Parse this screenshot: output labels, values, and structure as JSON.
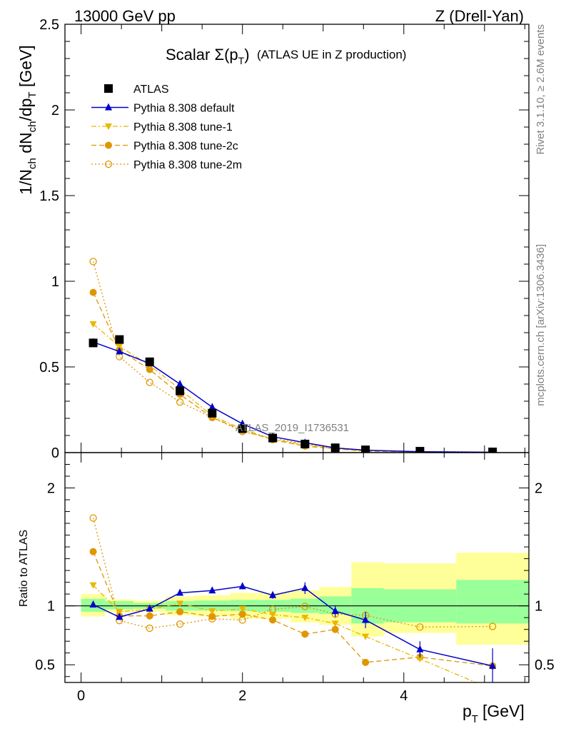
{
  "header": {
    "left": "13000 GeV pp",
    "right": "Z (Drell-Yan)"
  },
  "title": {
    "main": "Scalar Σ(p",
    "sub": "T",
    "close": ")",
    "tail": "(ATLAS UE in Z production)"
  },
  "side_labels": {
    "rivet": "Rivet 3.1.10, ≥ 2.6M events",
    "mcplots": "mcplots.cern.ch [arXiv:1306.3436]"
  },
  "watermark": "ATLAS_2019_I1736531",
  "axes": {
    "ylabel_main": "1/N_ch dN_ch/dp_T [GeV]",
    "ylabel_ratio": "Ratio to ATLAS",
    "xlabel": "p_T [GeV]",
    "xlabel_main": "p",
    "xlabel_sub": "T",
    "xlabel_unit": "[GeV]"
  },
  "colors": {
    "atlas": "#000000",
    "default": "#0000cc",
    "tune1": "#e8b800",
    "tune2c": "#e09600",
    "tune2m": "#e09600",
    "band_inner": "#99ff99",
    "band_outer": "#ffff99"
  },
  "chart_data": [
    {
      "type": "scatter",
      "panel": "main",
      "xlim": [
        -0.2,
        5.55
      ],
      "ylim": [
        0,
        2.5
      ],
      "xticks": [
        0,
        2,
        4
      ],
      "yticks": [
        0,
        0.5,
        1,
        1.5,
        2,
        2.5
      ],
      "ytick_labels": [
        "0",
        "0.5",
        "1",
        "1.5",
        "2",
        "2.5"
      ],
      "x": [
        0.15,
        0.475,
        0.85,
        1.225,
        1.625,
        2.0,
        2.375,
        2.775,
        3.15,
        3.525,
        4.2,
        5.1
      ],
      "series": [
        {
          "name": "ATLAS",
          "key": "atlas",
          "marker": "square",
          "line": "none",
          "values": [
            0.64,
            0.66,
            0.53,
            0.36,
            0.23,
            0.14,
            0.085,
            0.05,
            0.028,
            0.016,
            0.008,
            0.004
          ]
        },
        {
          "name": "Pythia 8.308 default",
          "key": "default",
          "marker": "triangle-up",
          "line": "solid",
          "values": [
            0.645,
            0.59,
            0.52,
            0.4,
            0.265,
            0.168,
            0.093,
            0.058,
            0.027,
            0.014,
            0.005,
            0.002
          ]
        },
        {
          "name": "Pythia 8.308 tune-1",
          "key": "tune1",
          "marker": "triangle-down",
          "line": "dashdot",
          "values": [
            0.75,
            0.62,
            0.51,
            0.37,
            0.215,
            0.137,
            0.078,
            0.045,
            0.022,
            0.012,
            0.004,
            0.0012
          ]
        },
        {
          "name": "Pythia 8.308 tune-2c",
          "key": "tune2c",
          "marker": "circle",
          "line": "dashed",
          "values": [
            0.935,
            0.6,
            0.485,
            0.34,
            0.205,
            0.13,
            0.075,
            0.038,
            0.022,
            0.008,
            0.0045,
            0.002
          ]
        },
        {
          "name": "Pythia 8.308 tune-2m",
          "key": "tune2m",
          "marker": "circle-open",
          "line": "dotted",
          "values": [
            1.115,
            0.56,
            0.41,
            0.295,
            0.205,
            0.123,
            0.083,
            0.05,
            0.027,
            0.013,
            0.0065,
            0.0033
          ]
        }
      ]
    },
    {
      "type": "scatter",
      "panel": "ratio",
      "xlim": [
        -0.2,
        5.55
      ],
      "ylim": [
        0.35,
        2.3
      ],
      "xticks": [
        0,
        2,
        4
      ],
      "xtick_labels": [
        "0",
        "2",
        "4"
      ],
      "yticks": [
        0.5,
        1,
        2
      ],
      "ytick_labels": [
        "0.5",
        "1",
        "2"
      ],
      "x": [
        0.15,
        0.475,
        0.85,
        1.225,
        1.625,
        2.0,
        2.375,
        2.775,
        3.15,
        3.525,
        4.2,
        5.1
      ],
      "bins": [
        [
          0,
          0.3
        ],
        [
          0.3,
          0.65
        ],
        [
          0.65,
          1.05
        ],
        [
          1.05,
          1.4
        ],
        [
          1.4,
          1.85
        ],
        [
          1.85,
          2.15
        ],
        [
          2.15,
          2.6
        ],
        [
          2.6,
          2.95
        ],
        [
          2.95,
          3.35
        ],
        [
          3.35,
          3.75
        ],
        [
          3.75,
          4.65
        ],
        [
          4.65,
          5.55
        ]
      ],
      "band_inner": [
        [
          0.95,
          1.06
        ],
        [
          0.97,
          1.04
        ],
        [
          0.975,
          1.025
        ],
        [
          0.96,
          1.04
        ],
        [
          0.96,
          1.045
        ],
        [
          0.955,
          1.05
        ],
        [
          0.95,
          1.05
        ],
        [
          0.94,
          1.06
        ],
        [
          0.93,
          1.08
        ],
        [
          0.85,
          1.15
        ],
        [
          0.86,
          1.14
        ],
        [
          0.85,
          1.22
        ]
      ],
      "band_outer": [
        [
          0.91,
          1.1
        ],
        [
          0.945,
          1.055
        ],
        [
          0.95,
          1.045
        ],
        [
          0.92,
          1.08
        ],
        [
          0.91,
          1.09
        ],
        [
          0.89,
          1.11
        ],
        [
          0.89,
          1.11
        ],
        [
          0.86,
          1.13
        ],
        [
          0.84,
          1.16
        ],
        [
          0.74,
          1.37
        ],
        [
          0.77,
          1.36
        ],
        [
          0.67,
          1.45
        ]
      ],
      "series": [
        {
          "name": "Pythia 8.308 default",
          "key": "default",
          "marker": "triangle-up",
          "line": "solid",
          "values": [
            1.01,
            0.905,
            0.975,
            1.11,
            1.13,
            1.165,
            1.09,
            1.15,
            0.955,
            0.88,
            0.63,
            0.49
          ],
          "errors": [
            0.01,
            0.01,
            0.015,
            0.015,
            0.02,
            0.025,
            0.03,
            0.05,
            0.05,
            0.07,
            0.07,
            0.15
          ]
        },
        {
          "name": "Pythia 8.308 tune-1",
          "key": "tune1",
          "marker": "triangle-down",
          "line": "dashdot",
          "values": [
            1.175,
            0.95,
            0.97,
            1.02,
            0.955,
            0.975,
            0.925,
            0.9,
            0.85,
            0.74,
            0.55,
            0.29
          ]
        },
        {
          "name": "Pythia 8.308 tune-2c",
          "key": "tune2c",
          "marker": "circle",
          "line": "dashed",
          "values": [
            1.46,
            0.915,
            0.915,
            0.95,
            0.91,
            0.93,
            0.88,
            0.76,
            0.8,
            0.52,
            0.565,
            0.49
          ]
        },
        {
          "name": "Pythia 8.308 tune-2m",
          "key": "tune2m",
          "marker": "circle-open",
          "line": "dotted",
          "values": [
            1.745,
            0.875,
            0.81,
            0.845,
            0.89,
            0.88,
            0.97,
            0.995,
            0.93,
            0.92,
            0.82,
            0.825
          ]
        }
      ]
    }
  ]
}
